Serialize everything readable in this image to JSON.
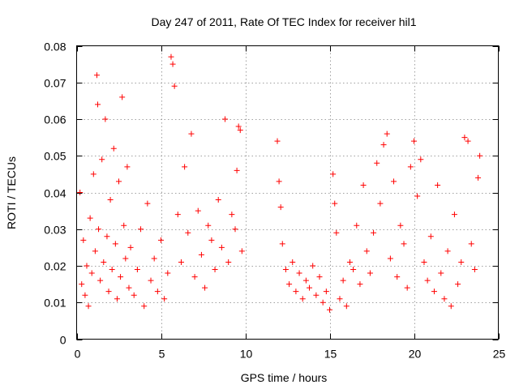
{
  "chart_data": {
    "type": "scatter",
    "title": "Day 247 of 2011, Rate Of TEC Index for receiver hil1",
    "xlabel": "GPS time / hours",
    "ylabel": "ROTI / TECUs",
    "xlim": [
      0,
      25
    ],
    "ylim": [
      0,
      0.08
    ],
    "xticks": [
      0,
      5,
      10,
      15,
      20,
      25
    ],
    "xtick_labels": [
      "0",
      "5",
      "10",
      "15",
      "20",
      "25"
    ],
    "yticks": [
      0,
      0.01,
      0.02,
      0.03,
      0.04,
      0.05,
      0.06,
      0.07,
      0.08
    ],
    "ytick_labels": [
      "0",
      "0.01",
      "0.02",
      "0.03",
      "0.04",
      "0.05",
      "0.06",
      "0.07",
      "0.08"
    ],
    "grid": true,
    "marker": "plus",
    "series": [
      {
        "name": "ROTI",
        "color": "#ff0000",
        "x": [
          0.2,
          0.3,
          0.4,
          0.5,
          0.6,
          0.7,
          0.8,
          0.9,
          1.0,
          1.1,
          1.2,
          1.25,
          1.3,
          1.4,
          1.5,
          1.6,
          1.7,
          1.8,
          1.9,
          2.0,
          2.1,
          2.2,
          2.3,
          2.4,
          2.5,
          2.6,
          2.7,
          2.8,
          2.9,
          3.0,
          3.1,
          3.2,
          3.4,
          3.6,
          3.8,
          4.0,
          4.2,
          4.4,
          4.6,
          4.8,
          5.0,
          5.2,
          5.4,
          5.6,
          5.7,
          5.8,
          6.0,
          6.2,
          6.4,
          6.6,
          6.8,
          7.0,
          7.2,
          7.4,
          7.6,
          7.8,
          8.0,
          8.2,
          8.4,
          8.6,
          8.8,
          9.0,
          9.2,
          9.4,
          9.5,
          9.6,
          9.7,
          9.8,
          11.9,
          12.0,
          12.1,
          12.2,
          12.4,
          12.6,
          12.8,
          13.0,
          13.2,
          13.4,
          13.6,
          13.8,
          14.0,
          14.2,
          14.4,
          14.6,
          14.8,
          15.0,
          15.2,
          15.3,
          15.4,
          15.6,
          15.8,
          16.0,
          16.2,
          16.4,
          16.6,
          16.8,
          17.0,
          17.2,
          17.4,
          17.6,
          17.8,
          18.0,
          18.2,
          18.4,
          18.6,
          18.8,
          19.0,
          19.2,
          19.4,
          19.6,
          19.8,
          20.0,
          20.2,
          20.4,
          20.6,
          20.8,
          21.0,
          21.2,
          21.4,
          21.6,
          21.8,
          22.0,
          22.2,
          22.4,
          22.6,
          22.8,
          23.0,
          23.2,
          23.4,
          23.6,
          23.8,
          23.9
        ],
        "y": [
          0.04,
          0.015,
          0.027,
          0.012,
          0.02,
          0.009,
          0.033,
          0.018,
          0.045,
          0.024,
          0.072,
          0.064,
          0.03,
          0.016,
          0.049,
          0.021,
          0.06,
          0.028,
          0.013,
          0.038,
          0.019,
          0.052,
          0.026,
          0.011,
          0.043,
          0.017,
          0.066,
          0.031,
          0.022,
          0.047,
          0.014,
          0.025,
          0.012,
          0.019,
          0.03,
          0.009,
          0.037,
          0.016,
          0.022,
          0.013,
          0.027,
          0.011,
          0.018,
          0.077,
          0.075,
          0.069,
          0.034,
          0.021,
          0.047,
          0.029,
          0.056,
          0.017,
          0.035,
          0.023,
          0.014,
          0.031,
          0.027,
          0.019,
          0.038,
          0.025,
          0.06,
          0.021,
          0.034,
          0.03,
          0.046,
          0.058,
          0.057,
          0.024,
          0.054,
          0.043,
          0.036,
          0.026,
          0.019,
          0.015,
          0.021,
          0.013,
          0.018,
          0.011,
          0.016,
          0.014,
          0.02,
          0.012,
          0.017,
          0.01,
          0.013,
          0.008,
          0.045,
          0.037,
          0.029,
          0.011,
          0.016,
          0.009,
          0.021,
          0.019,
          0.031,
          0.015,
          0.042,
          0.024,
          0.018,
          0.029,
          0.048,
          0.037,
          0.053,
          0.056,
          0.022,
          0.043,
          0.017,
          0.031,
          0.026,
          0.014,
          0.047,
          0.054,
          0.039,
          0.049,
          0.021,
          0.016,
          0.028,
          0.013,
          0.042,
          0.018,
          0.011,
          0.024,
          0.009,
          0.034,
          0.015,
          0.021,
          0.055,
          0.054,
          0.026,
          0.019,
          0.044,
          0.05
        ]
      }
    ]
  }
}
